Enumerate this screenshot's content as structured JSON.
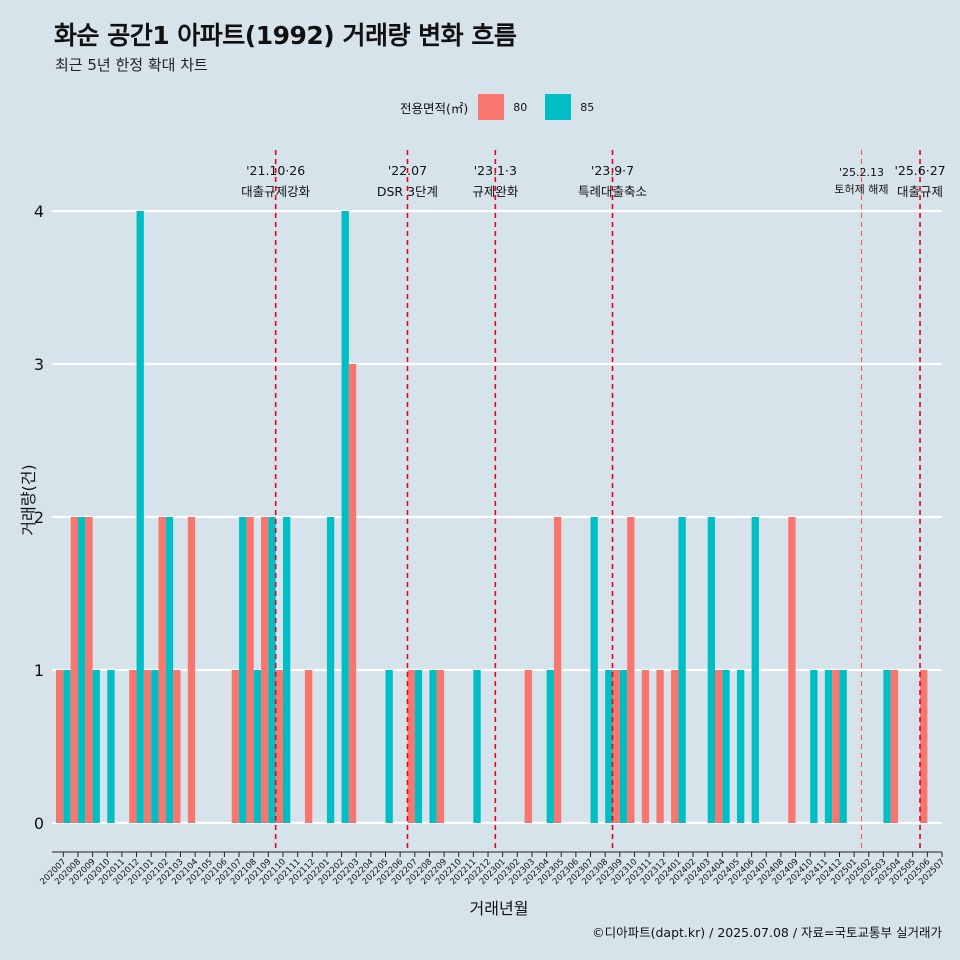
{
  "chart_data": {
    "type": "bar",
    "title": "화순 공간1 아파트(1992) 거래량 변화 흐름",
    "subtitle": "최근 5년 한정 확대 차트",
    "xlabel": "거래년월",
    "ylabel": "거래량(건)",
    "caption": "©디아파트(dapt.kr) / 2025.07.08 / 자료=국토교통부 실거래가",
    "legend_title": "전용면적(㎡)",
    "ylim": [
      0,
      4
    ],
    "yticks": [
      0,
      1,
      2,
      3,
      4
    ],
    "categories": [
      "202007",
      "202008",
      "202009",
      "202010",
      "202011",
      "202012",
      "202101",
      "202102",
      "202103",
      "202104",
      "202105",
      "202106",
      "202107",
      "202108",
      "202109",
      "202110",
      "202111",
      "202112",
      "202201",
      "202202",
      "202203",
      "202204",
      "202205",
      "202206",
      "202207",
      "202208",
      "202209",
      "202210",
      "202211",
      "202212",
      "202301",
      "202302",
      "202303",
      "202304",
      "202305",
      "202306",
      "202307",
      "202308",
      "202309",
      "202310",
      "202311",
      "202312",
      "202401",
      "202402",
      "202403",
      "202404",
      "202405",
      "202406",
      "202407",
      "202408",
      "202409",
      "202410",
      "202411",
      "202412",
      "202501",
      "202502",
      "202503",
      "202504",
      "202505",
      "202506",
      "202507"
    ],
    "series": [
      {
        "name": "80",
        "color": "#f8766d",
        "values": [
          1,
          2,
          2,
          0,
          0,
          1,
          1,
          2,
          1,
          2,
          0,
          0,
          1,
          2,
          2,
          1,
          0,
          1,
          0,
          0,
          3,
          0,
          0,
          0,
          1,
          0,
          1,
          0,
          0,
          0,
          0,
          0,
          1,
          0,
          2,
          0,
          0,
          0,
          1,
          2,
          1,
          1,
          1,
          0,
          0,
          1,
          0,
          0,
          0,
          0,
          2,
          0,
          0,
          1,
          0,
          0,
          0,
          1,
          0,
          1,
          0
        ]
      },
      {
        "name": "85",
        "color": "#00bfc4",
        "values": [
          1,
          2,
          1,
          1,
          0,
          4,
          1,
          2,
          0,
          0,
          0,
          0,
          2,
          1,
          2,
          2,
          0,
          0,
          2,
          4,
          0,
          0,
          1,
          0,
          1,
          1,
          0,
          0,
          1,
          0,
          0,
          0,
          0,
          1,
          0,
          0,
          2,
          1,
          1,
          0,
          0,
          0,
          2,
          0,
          2,
          1,
          1,
          2,
          0,
          0,
          0,
          1,
          1,
          1,
          0,
          0,
          1,
          0,
          0,
          0,
          0
        ]
      }
    ],
    "events": [
      {
        "date": "202110",
        "label_date": "'21.10·26",
        "label": "대출규제강화",
        "style": "bold"
      },
      {
        "date": "202207",
        "label_date": "'22.07",
        "label": "DSR 3단계",
        "style": "bold"
      },
      {
        "date": "202301",
        "label_date": "'23.1·3",
        "label": "규제완화",
        "style": "bold"
      },
      {
        "date": "202309",
        "label_date": "'23.9·7",
        "label": "특례대출축소",
        "style": "bold"
      },
      {
        "date": "202502",
        "label_date": "'25.2.13",
        "label": "토허제 해제",
        "style": "thin"
      },
      {
        "date": "202506",
        "label_date": "'25.6·27",
        "label": "대출규제",
        "style": "bold"
      }
    ]
  }
}
